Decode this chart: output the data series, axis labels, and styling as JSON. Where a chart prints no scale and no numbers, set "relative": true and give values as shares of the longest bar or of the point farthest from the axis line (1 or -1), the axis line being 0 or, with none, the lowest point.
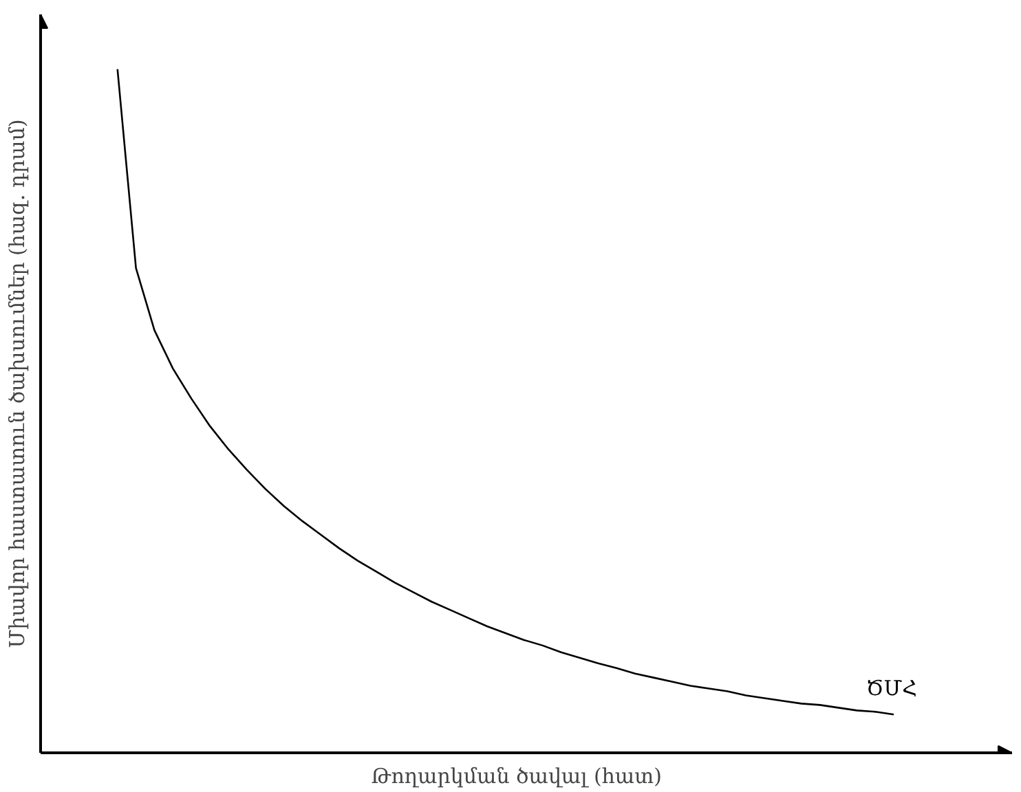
{
  "chart_data": {
    "type": "line",
    "relative": true,
    "xlabel": "Թողարկման ծավալ    (հատ)",
    "ylabel": "Միավոր հաստատուն ծախսումներ (հազ. դրամ)",
    "categories": [
      null,
      null,
      null,
      null,
      null,
      null,
      null,
      null,
      null,
      null,
      null,
      null,
      null,
      null,
      null,
      null,
      null,
      null,
      null,
      null,
      null,
      null,
      null,
      null,
      null,
      null,
      null,
      null,
      null,
      null,
      null,
      null,
      null,
      null,
      null,
      null,
      null,
      null,
      null,
      null,
      null,
      null,
      null
    ],
    "series": [
      {
        "name": "ԾՄՀ",
        "color": "#000000",
        "values": [
          1.0,
          0.709,
          0.618,
          0.562,
          0.518,
          0.478,
          0.444,
          0.414,
          0.386,
          0.361,
          0.339,
          0.319,
          0.299,
          0.281,
          0.265,
          0.249,
          0.235,
          0.221,
          0.209,
          0.197,
          0.185,
          0.175,
          0.165,
          0.157,
          0.147,
          0.139,
          0.131,
          0.124,
          0.116,
          0.11,
          0.104,
          0.098,
          0.094,
          0.09,
          0.084,
          0.08,
          0.076,
          0.072,
          0.07,
          0.066,
          0.062,
          0.06,
          0.056
        ]
      }
    ],
    "grid": false,
    "legend": false,
    "marker": "none",
    "line_style": "solid"
  }
}
